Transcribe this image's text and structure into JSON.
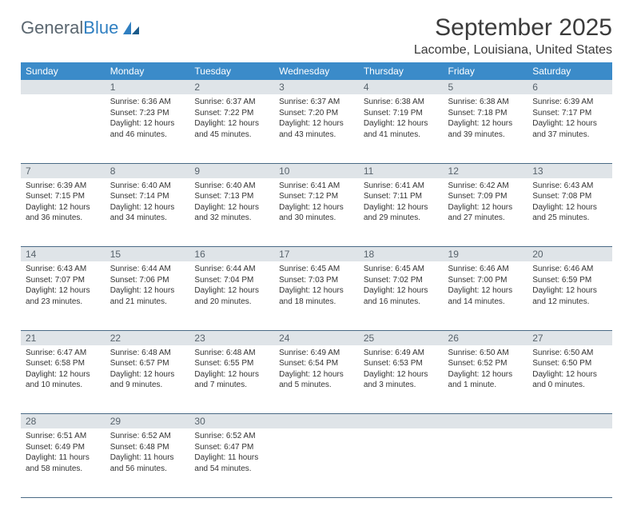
{
  "logo": {
    "text1": "General",
    "text2": "Blue"
  },
  "title": "September 2025",
  "subtitle": "Lacombe, Louisiana, United States",
  "colors": {
    "header_bg": "#3b8bc9",
    "header_text": "#ffffff",
    "daynum_bg": "#dfe4e8",
    "daynum_text": "#58636c",
    "border": "#4a6a85",
    "logo_gray": "#5b6770",
    "logo_blue": "#2f7fc1"
  },
  "weekdays": [
    "Sunday",
    "Monday",
    "Tuesday",
    "Wednesday",
    "Thursday",
    "Friday",
    "Saturday"
  ],
  "weeks": [
    {
      "nums": [
        "",
        "1",
        "2",
        "3",
        "4",
        "5",
        "6"
      ],
      "cells": [
        null,
        {
          "sunrise": "Sunrise: 6:36 AM",
          "sunset": "Sunset: 7:23 PM",
          "daylight": "Daylight: 12 hours and 46 minutes."
        },
        {
          "sunrise": "Sunrise: 6:37 AM",
          "sunset": "Sunset: 7:22 PM",
          "daylight": "Daylight: 12 hours and 45 minutes."
        },
        {
          "sunrise": "Sunrise: 6:37 AM",
          "sunset": "Sunset: 7:20 PM",
          "daylight": "Daylight: 12 hours and 43 minutes."
        },
        {
          "sunrise": "Sunrise: 6:38 AM",
          "sunset": "Sunset: 7:19 PM",
          "daylight": "Daylight: 12 hours and 41 minutes."
        },
        {
          "sunrise": "Sunrise: 6:38 AM",
          "sunset": "Sunset: 7:18 PM",
          "daylight": "Daylight: 12 hours and 39 minutes."
        },
        {
          "sunrise": "Sunrise: 6:39 AM",
          "sunset": "Sunset: 7:17 PM",
          "daylight": "Daylight: 12 hours and 37 minutes."
        }
      ]
    },
    {
      "nums": [
        "7",
        "8",
        "9",
        "10",
        "11",
        "12",
        "13"
      ],
      "cells": [
        {
          "sunrise": "Sunrise: 6:39 AM",
          "sunset": "Sunset: 7:15 PM",
          "daylight": "Daylight: 12 hours and 36 minutes."
        },
        {
          "sunrise": "Sunrise: 6:40 AM",
          "sunset": "Sunset: 7:14 PM",
          "daylight": "Daylight: 12 hours and 34 minutes."
        },
        {
          "sunrise": "Sunrise: 6:40 AM",
          "sunset": "Sunset: 7:13 PM",
          "daylight": "Daylight: 12 hours and 32 minutes."
        },
        {
          "sunrise": "Sunrise: 6:41 AM",
          "sunset": "Sunset: 7:12 PM",
          "daylight": "Daylight: 12 hours and 30 minutes."
        },
        {
          "sunrise": "Sunrise: 6:41 AM",
          "sunset": "Sunset: 7:11 PM",
          "daylight": "Daylight: 12 hours and 29 minutes."
        },
        {
          "sunrise": "Sunrise: 6:42 AM",
          "sunset": "Sunset: 7:09 PM",
          "daylight": "Daylight: 12 hours and 27 minutes."
        },
        {
          "sunrise": "Sunrise: 6:43 AM",
          "sunset": "Sunset: 7:08 PM",
          "daylight": "Daylight: 12 hours and 25 minutes."
        }
      ]
    },
    {
      "nums": [
        "14",
        "15",
        "16",
        "17",
        "18",
        "19",
        "20"
      ],
      "cells": [
        {
          "sunrise": "Sunrise: 6:43 AM",
          "sunset": "Sunset: 7:07 PM",
          "daylight": "Daylight: 12 hours and 23 minutes."
        },
        {
          "sunrise": "Sunrise: 6:44 AM",
          "sunset": "Sunset: 7:06 PM",
          "daylight": "Daylight: 12 hours and 21 minutes."
        },
        {
          "sunrise": "Sunrise: 6:44 AM",
          "sunset": "Sunset: 7:04 PM",
          "daylight": "Daylight: 12 hours and 20 minutes."
        },
        {
          "sunrise": "Sunrise: 6:45 AM",
          "sunset": "Sunset: 7:03 PM",
          "daylight": "Daylight: 12 hours and 18 minutes."
        },
        {
          "sunrise": "Sunrise: 6:45 AM",
          "sunset": "Sunset: 7:02 PM",
          "daylight": "Daylight: 12 hours and 16 minutes."
        },
        {
          "sunrise": "Sunrise: 6:46 AM",
          "sunset": "Sunset: 7:00 PM",
          "daylight": "Daylight: 12 hours and 14 minutes."
        },
        {
          "sunrise": "Sunrise: 6:46 AM",
          "sunset": "Sunset: 6:59 PM",
          "daylight": "Daylight: 12 hours and 12 minutes."
        }
      ]
    },
    {
      "nums": [
        "21",
        "22",
        "23",
        "24",
        "25",
        "26",
        "27"
      ],
      "cells": [
        {
          "sunrise": "Sunrise: 6:47 AM",
          "sunset": "Sunset: 6:58 PM",
          "daylight": "Daylight: 12 hours and 10 minutes."
        },
        {
          "sunrise": "Sunrise: 6:48 AM",
          "sunset": "Sunset: 6:57 PM",
          "daylight": "Daylight: 12 hours and 9 minutes."
        },
        {
          "sunrise": "Sunrise: 6:48 AM",
          "sunset": "Sunset: 6:55 PM",
          "daylight": "Daylight: 12 hours and 7 minutes."
        },
        {
          "sunrise": "Sunrise: 6:49 AM",
          "sunset": "Sunset: 6:54 PM",
          "daylight": "Daylight: 12 hours and 5 minutes."
        },
        {
          "sunrise": "Sunrise: 6:49 AM",
          "sunset": "Sunset: 6:53 PM",
          "daylight": "Daylight: 12 hours and 3 minutes."
        },
        {
          "sunrise": "Sunrise: 6:50 AM",
          "sunset": "Sunset: 6:52 PM",
          "daylight": "Daylight: 12 hours and 1 minute."
        },
        {
          "sunrise": "Sunrise: 6:50 AM",
          "sunset": "Sunset: 6:50 PM",
          "daylight": "Daylight: 12 hours and 0 minutes."
        }
      ]
    },
    {
      "nums": [
        "28",
        "29",
        "30",
        "",
        "",
        "",
        ""
      ],
      "cells": [
        {
          "sunrise": "Sunrise: 6:51 AM",
          "sunset": "Sunset: 6:49 PM",
          "daylight": "Daylight: 11 hours and 58 minutes."
        },
        {
          "sunrise": "Sunrise: 6:52 AM",
          "sunset": "Sunset: 6:48 PM",
          "daylight": "Daylight: 11 hours and 56 minutes."
        },
        {
          "sunrise": "Sunrise: 6:52 AM",
          "sunset": "Sunset: 6:47 PM",
          "daylight": "Daylight: 11 hours and 54 minutes."
        },
        null,
        null,
        null,
        null
      ]
    }
  ]
}
